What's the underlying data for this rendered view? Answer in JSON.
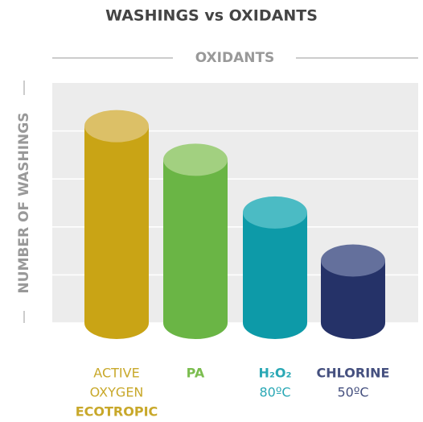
{
  "chart_data": {
    "type": "cylinder-bar",
    "title": "WASHINGS vs OXIDANTS",
    "x_label": "OXIDANTS",
    "y_label": "NUMBER OF WASHINGS",
    "categories": [
      [
        "ACTIVE",
        "OXYGEN",
        "ECOTROPIC"
      ],
      [
        "PA"
      ],
      [
        "H₂O₂",
        "80ºC"
      ],
      [
        "CHLORINE",
        "50ºC"
      ]
    ],
    "values": [
      4.1,
      3.4,
      2.3,
      1.3
    ],
    "colors": [
      "#c9a415",
      "#6ab545",
      "#0d9aa8",
      "#253268"
    ],
    "top_colors": [
      "#dcc067",
      "#a2d080",
      "#4bbbc4",
      "#64709c"
    ],
    "label_colors": [
      "#c8a82a",
      "#7bbd4f",
      "#2aa8b5",
      "#45507f"
    ],
    "ylim": [
      0,
      5
    ],
    "yticks": [
      0,
      1,
      2,
      3,
      4
    ],
    "grid": true
  }
}
